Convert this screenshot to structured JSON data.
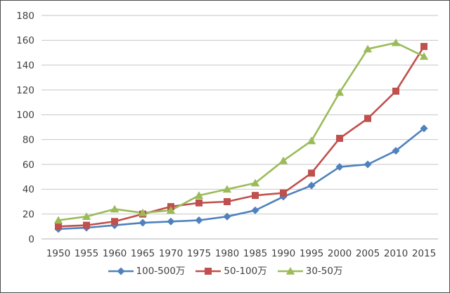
{
  "chart_data": {
    "type": "line",
    "title": "",
    "xlabel": "",
    "ylabel": "",
    "x": [
      1950,
      1955,
      1960,
      1965,
      1970,
      1975,
      1980,
      1985,
      1990,
      1995,
      2000,
      2005,
      2010,
      2015
    ],
    "series": [
      {
        "name": "100-500万",
        "marker": "diamond",
        "color": "#4f81bd",
        "values": [
          8,
          9,
          11,
          13,
          14,
          15,
          18,
          23,
          34,
          43,
          58,
          60,
          71,
          89
        ]
      },
      {
        "name": "50-100万",
        "marker": "square",
        "color": "#c0504d",
        "values": [
          10,
          11,
          14,
          20,
          26,
          29,
          30,
          35,
          37,
          53,
          81,
          97,
          119,
          155
        ]
      },
      {
        "name": "30-50万",
        "marker": "triangle",
        "color": "#9bbb59",
        "values": [
          15,
          18,
          24,
          21,
          23,
          35,
          40,
          45,
          63,
          79,
          118,
          153,
          158,
          147
        ]
      }
    ],
    "ylim": [
      0,
      180
    ],
    "ytick_step": 20,
    "grid": "horizontal",
    "legend_position": "bottom",
    "colors": {
      "axis_label": "#404040",
      "gridline": "#c6c6c6",
      "zero_line": "#b0b0b0",
      "background": "#ffffff",
      "border": "#4d4d4d"
    }
  }
}
